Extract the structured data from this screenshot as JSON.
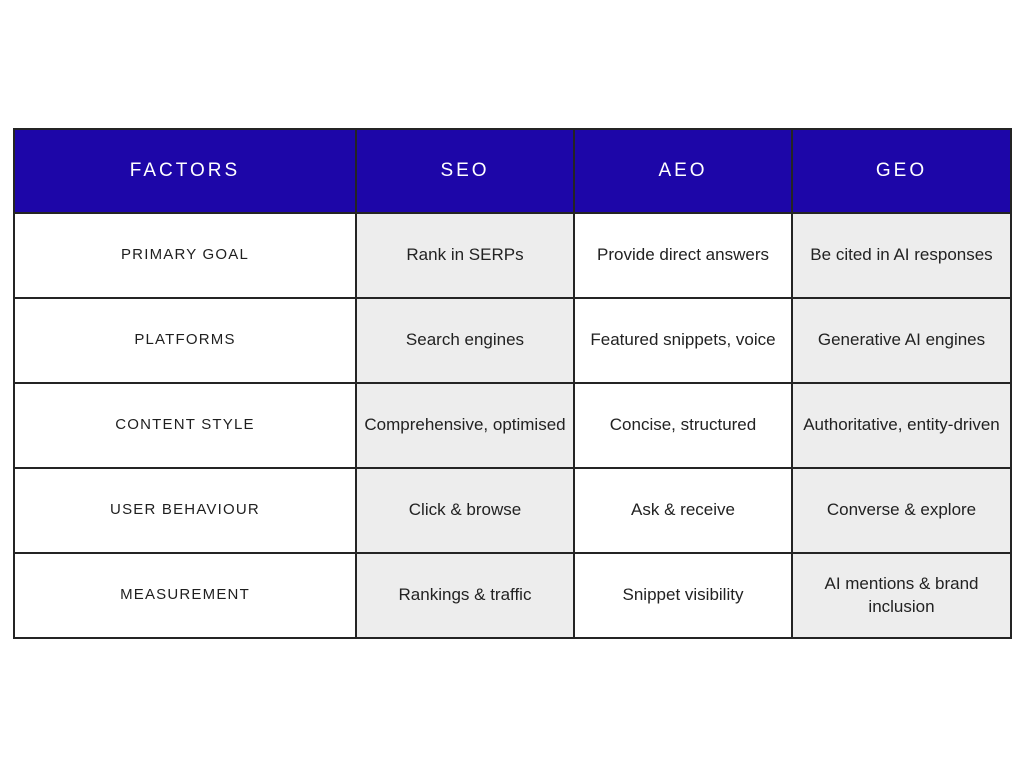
{
  "table": {
    "columns": [
      {
        "label": "FACTORS"
      },
      {
        "label": "SEO"
      },
      {
        "label": "AEO"
      },
      {
        "label": "GEO"
      }
    ],
    "rows": [
      {
        "factor": "PRIMARY GOAL",
        "seo": "Rank in SERPs",
        "aeo": "Provide direct answers",
        "geo": "Be cited in AI responses"
      },
      {
        "factor": "PLATFORMS",
        "seo": "Search engines",
        "aeo": "Featured snippets, voice",
        "geo": "Generative AI engines"
      },
      {
        "factor": "CONTENT STYLE",
        "seo": "Comprehensive, optimised",
        "aeo": "Concise, structured",
        "geo": "Authoritative, entity-driven"
      },
      {
        "factor": "USER BEHAVIOUR",
        "seo": "Click & browse",
        "aeo": "Ask & receive",
        "geo": "Converse & explore"
      },
      {
        "factor": "MEASUREMENT",
        "seo": "Rankings & traffic",
        "aeo": "Snippet visibility",
        "geo": "AI mentions & brand inclusion"
      }
    ],
    "colors": {
      "header_bg": "#1d06a8",
      "header_text": "#ffffff",
      "cell_bg": "#ffffff",
      "cell_bg_alt": "#ededed",
      "border": "#242424",
      "text": "#222222"
    }
  }
}
